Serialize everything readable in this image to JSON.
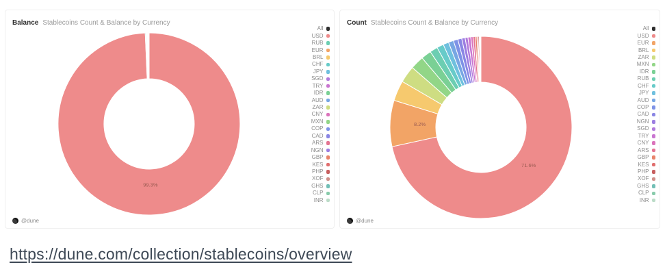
{
  "source_link": {
    "text": "https://dune.com/collection/stablecoins/overview"
  },
  "colors": {
    "All": "#2e2e2e",
    "USD": "#ee8b8b",
    "EUR": "#f2a466",
    "BRL": "#f6c96e",
    "ZAR": "#cedd82",
    "MXN": "#92d687",
    "IDR": "#7ad095",
    "RUB": "#6cceb2",
    "CHF": "#67cbc9",
    "JPY": "#6fc0de",
    "AUD": "#77a6e3",
    "COP": "#7e92e6",
    "CAD": "#8a86e4",
    "NGN": "#9c7ee1",
    "SGD": "#b17adc",
    "TRY": "#c976d1",
    "CNY": "#db73bb",
    "ARS": "#e47492",
    "GBP": "#e8846b",
    "KES": "#e06e6e",
    "PHP": "#c75f5f",
    "XOF": "#cf8f89",
    "GHS": "#72bfb6",
    "CLP": "#88cbab",
    "INR": "#bcdcc8"
  },
  "chart_data": [
    {
      "type": "pie",
      "donut": true,
      "title": "Balance",
      "subtitle": "Stablecoins Count & Balance by Currency",
      "watermark": "@dune",
      "legend_position": "right",
      "label_threshold_pct": 5,
      "legend": [
        "All",
        "USD",
        "RUB",
        "EUR",
        "BRL",
        "CHF",
        "JPY",
        "SGD",
        "TRY",
        "IDR",
        "AUD",
        "ZAR",
        "CNY",
        "MXN",
        "COP",
        "CAD",
        "ARS",
        "NGN",
        "GBP",
        "KES",
        "PHP",
        "XOF",
        "GHS",
        "CLP",
        "INR"
      ],
      "slices": [
        {
          "name": "USD",
          "value": 99.3,
          "label": "99.3%"
        },
        {
          "name": "RUB",
          "value": 0.15
        },
        {
          "name": "EUR",
          "value": 0.1
        },
        {
          "name": "BRL",
          "value": 0.05
        },
        {
          "name": "CHF",
          "value": 0.05
        },
        {
          "name": "JPY",
          "value": 0.04
        },
        {
          "name": "SGD",
          "value": 0.03
        },
        {
          "name": "TRY",
          "value": 0.03
        },
        {
          "name": "IDR",
          "value": 0.03
        },
        {
          "name": "AUD",
          "value": 0.02
        },
        {
          "name": "ZAR",
          "value": 0.02
        },
        {
          "name": "CNY",
          "value": 0.02
        },
        {
          "name": "MXN",
          "value": 0.02
        },
        {
          "name": "COP",
          "value": 0.02
        },
        {
          "name": "CAD",
          "value": 0.02
        },
        {
          "name": "ARS",
          "value": 0.01
        },
        {
          "name": "NGN",
          "value": 0.01
        },
        {
          "name": "GBP",
          "value": 0.01
        },
        {
          "name": "KES",
          "value": 0.01
        },
        {
          "name": "PHP",
          "value": 0.01
        },
        {
          "name": "XOF",
          "value": 0.01
        },
        {
          "name": "GHS",
          "value": 0.01
        },
        {
          "name": "CLP",
          "value": 0.01
        },
        {
          "name": "INR",
          "value": 0.01
        }
      ]
    },
    {
      "type": "pie",
      "donut": true,
      "title": "Count",
      "subtitle": "Stablecoins Count & Balance by Currency",
      "watermark": "@dune",
      "legend_position": "right",
      "label_threshold_pct": 5,
      "legend": [
        "All",
        "USD",
        "EUR",
        "BRL",
        "ZAR",
        "MXN",
        "IDR",
        "RUB",
        "CHF",
        "JPY",
        "AUD",
        "COP",
        "CAD",
        "NGN",
        "SGD",
        "TRY",
        "CNY",
        "ARS",
        "GBP",
        "KES",
        "PHP",
        "XOF",
        "GHS",
        "CLP",
        "INR"
      ],
      "slices": [
        {
          "name": "USD",
          "value": 71.6,
          "label": "71.6%"
        },
        {
          "name": "EUR",
          "value": 8.2,
          "label": "8.2%"
        },
        {
          "name": "BRL",
          "value": 3.6
        },
        {
          "name": "ZAR",
          "value": 3.0
        },
        {
          "name": "MXN",
          "value": 2.4
        },
        {
          "name": "IDR",
          "value": 1.8
        },
        {
          "name": "RUB",
          "value": 1.4
        },
        {
          "name": "CHF",
          "value": 1.2
        },
        {
          "name": "JPY",
          "value": 1.0
        },
        {
          "name": "AUD",
          "value": 0.9
        },
        {
          "name": "COP",
          "value": 0.8
        },
        {
          "name": "CAD",
          "value": 0.7
        },
        {
          "name": "NGN",
          "value": 0.6
        },
        {
          "name": "SGD",
          "value": 0.5
        },
        {
          "name": "TRY",
          "value": 0.5
        },
        {
          "name": "CNY",
          "value": 0.4
        },
        {
          "name": "ARS",
          "value": 0.4
        },
        {
          "name": "GBP",
          "value": 0.3
        },
        {
          "name": "KES",
          "value": 0.2
        },
        {
          "name": "PHP",
          "value": 0.2
        },
        {
          "name": "XOF",
          "value": 0.1
        },
        {
          "name": "GHS",
          "value": 0.1
        },
        {
          "name": "CLP",
          "value": 0.05
        },
        {
          "name": "INR",
          "value": 0.05
        }
      ]
    }
  ]
}
